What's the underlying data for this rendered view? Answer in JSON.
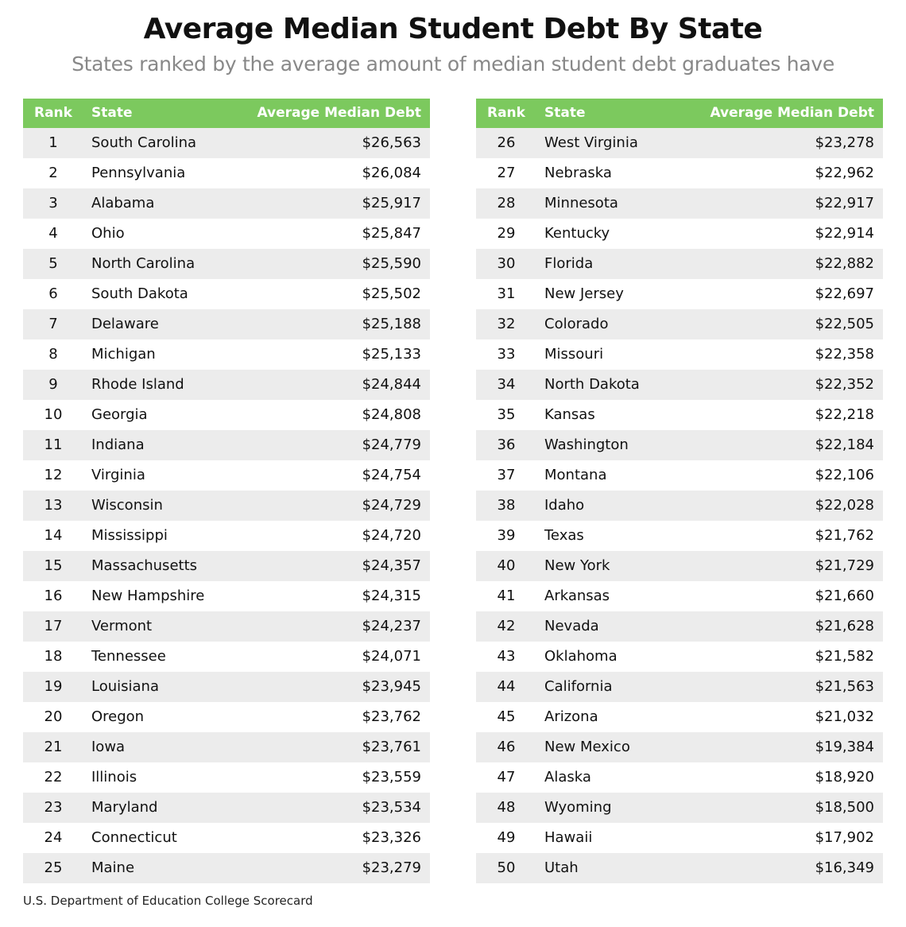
{
  "header": {
    "title": "Average Median Student Debt By State",
    "subtitle": "States ranked by the average amount of median student debt graduates have"
  },
  "tables": [
    {
      "columns": [
        "Rank",
        "State",
        "Average Median Debt"
      ],
      "rows": [
        [
          "1",
          "South Carolina",
          "$26,563"
        ],
        [
          "2",
          "Pennsylvania",
          "$26,084"
        ],
        [
          "3",
          "Alabama",
          "$25,917"
        ],
        [
          "4",
          "Ohio",
          "$25,847"
        ],
        [
          "5",
          "North Carolina",
          "$25,590"
        ],
        [
          "6",
          "South Dakota",
          "$25,502"
        ],
        [
          "7",
          "Delaware",
          "$25,188"
        ],
        [
          "8",
          "Michigan",
          "$25,133"
        ],
        [
          "9",
          "Rhode Island",
          "$24,844"
        ],
        [
          "10",
          "Georgia",
          "$24,808"
        ],
        [
          "11",
          "Indiana",
          "$24,779"
        ],
        [
          "12",
          "Virginia",
          "$24,754"
        ],
        [
          "13",
          "Wisconsin",
          "$24,729"
        ],
        [
          "14",
          "Mississippi",
          "$24,720"
        ],
        [
          "15",
          "Massachusetts",
          "$24,357"
        ],
        [
          "16",
          "New Hampshire",
          "$24,315"
        ],
        [
          "17",
          "Vermont",
          "$24,237"
        ],
        [
          "18",
          "Tennessee",
          "$24,071"
        ],
        [
          "19",
          "Louisiana",
          "$23,945"
        ],
        [
          "20",
          "Oregon",
          "$23,762"
        ],
        [
          "21",
          "Iowa",
          "$23,761"
        ],
        [
          "22",
          "Illinois",
          "$23,559"
        ],
        [
          "23",
          "Maryland",
          "$23,534"
        ],
        [
          "24",
          "Connecticut",
          "$23,326"
        ],
        [
          "25",
          "Maine",
          "$23,279"
        ]
      ]
    },
    {
      "columns": [
        "Rank",
        "State",
        "Average Median Debt"
      ],
      "rows": [
        [
          "26",
          "West Virginia",
          "$23,278"
        ],
        [
          "27",
          "Nebraska",
          "$22,962"
        ],
        [
          "28",
          "Minnesota",
          "$22,917"
        ],
        [
          "29",
          "Kentucky",
          "$22,914"
        ],
        [
          "30",
          "Florida",
          "$22,882"
        ],
        [
          "31",
          "New Jersey",
          "$22,697"
        ],
        [
          "32",
          "Colorado",
          "$22,505"
        ],
        [
          "33",
          "Missouri",
          "$22,358"
        ],
        [
          "34",
          "North Dakota",
          "$22,352"
        ],
        [
          "35",
          "Kansas",
          "$22,218"
        ],
        [
          "36",
          "Washington",
          "$22,184"
        ],
        [
          "37",
          "Montana",
          "$22,106"
        ],
        [
          "38",
          "Idaho",
          "$22,028"
        ],
        [
          "39",
          "Texas",
          "$21,762"
        ],
        [
          "40",
          "New York",
          "$21,729"
        ],
        [
          "41",
          "Arkansas",
          "$21,660"
        ],
        [
          "42",
          "Nevada",
          "$21,628"
        ],
        [
          "43",
          "Oklahoma",
          "$21,582"
        ],
        [
          "44",
          "California",
          "$21,563"
        ],
        [
          "45",
          "Arizona",
          "$21,032"
        ],
        [
          "46",
          "New Mexico",
          "$19,384"
        ],
        [
          "47",
          "Alaska",
          "$18,920"
        ],
        [
          "48",
          "Wyoming",
          "$18,500"
        ],
        [
          "49",
          "Hawaii",
          "$17,902"
        ],
        [
          "50",
          "Utah",
          "$16,349"
        ]
      ]
    }
  ],
  "source": "U.S. Department of Education College Scorecard"
}
